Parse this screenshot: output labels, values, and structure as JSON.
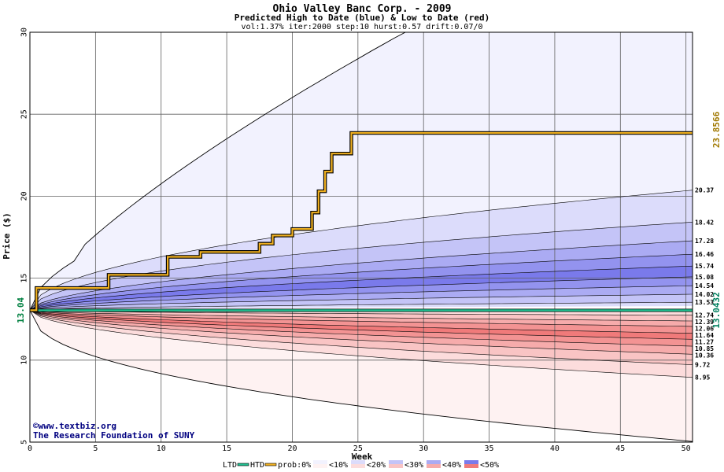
{
  "chart_data": {
    "type": "area",
    "title": "Ohio Valley Banc Corp. - 2009",
    "subtitle": "Predicted High to Date (blue) &  Low to Date (red)",
    "params": "vol:1.37% iter:2000 step:10 hurst:0.57 drift:0.07/0",
    "xlabel": "Week",
    "ylabel": "Price ($)",
    "xlim": [
      0,
      50.5
    ],
    "ylim": [
      5,
      30
    ],
    "x_ticks": [
      "0",
      "5",
      "10",
      "15",
      "20",
      "25",
      "30",
      "35",
      "40",
      "45",
      "50"
    ],
    "y_ticks": [
      "5",
      "10",
      "15",
      "20",
      "25",
      "30"
    ],
    "start_price": "13.04",
    "ltd_value": "13.0432",
    "htd_value": "23.8566",
    "grid": true,
    "high_bands": [
      {
        "end": 30.0,
        "fill": "#f2f2fe"
      },
      {
        "end": 20.37,
        "fill": "#dcdcfb"
      },
      {
        "end": 18.42,
        "fill": "#c4c4f7"
      },
      {
        "end": 17.28,
        "fill": "#ababf3"
      },
      {
        "end": 16.46,
        "fill": "#9393ef"
      },
      {
        "end": 15.74,
        "fill": "#7a7aeb"
      },
      {
        "end": 15.08,
        "fill": "#9393ef"
      },
      {
        "end": 14.54,
        "fill": "#ababf3"
      },
      {
        "end": 14.02,
        "fill": "#c4c4f7"
      },
      {
        "end": 13.53,
        "fill": "#dcdcfb"
      }
    ],
    "low_bands": [
      {
        "end": 12.74,
        "fill": "#fcdcdc"
      },
      {
        "end": 12.39,
        "fill": "#f9c4c4"
      },
      {
        "end": 12.06,
        "fill": "#f6abab"
      },
      {
        "end": 11.64,
        "fill": "#f39393"
      },
      {
        "end": 11.27,
        "fill": "#f07a7a"
      },
      {
        "end": 10.85,
        "fill": "#f39393"
      },
      {
        "end": 10.36,
        "fill": "#f6abab"
      },
      {
        "end": 9.72,
        "fill": "#f9c4c4"
      },
      {
        "end": 8.95,
        "fill": "#fcdcdc"
      },
      {
        "end": 5.0,
        "fill": "#fef2f2"
      }
    ],
    "end_labels": [
      "20.37",
      "18.42",
      "17.28",
      "16.46",
      "15.74",
      "15.08",
      "14.54",
      "14.02",
      "13.53",
      "12.74",
      "12.39",
      "12.06",
      "11.64",
      "11.27",
      "10.85",
      "10.36",
      "9.72",
      "8.95"
    ],
    "htd_series": {
      "name": "HTD",
      "x": [
        0,
        0.5,
        0.5,
        6,
        6,
        10.5,
        10.5,
        13,
        13,
        17.5,
        17.5,
        18.5,
        18.5,
        20,
        20,
        21.5,
        21.5,
        22,
        22,
        22.5,
        22.5,
        23,
        23,
        24,
        24,
        24.5,
        24.5,
        50.5
      ],
      "y": [
        13.04,
        13.04,
        14.4,
        14.4,
        15.2,
        15.2,
        16.3,
        16.3,
        16.6,
        16.6,
        17.1,
        17.1,
        17.6,
        17.6,
        18.0,
        18.0,
        19.0,
        19.0,
        20.3,
        20.3,
        21.5,
        21.5,
        22.6,
        22.6,
        22.6,
        22.6,
        23.86,
        23.86
      ],
      "color": "#f0b020"
    },
    "ltd_series": {
      "name": "LTD",
      "x": [
        0,
        50.5
      ],
      "y": [
        13.04,
        13.04
      ],
      "color": "#20c090"
    },
    "legend": {
      "ltd_label": "LTD",
      "htd_label": "HTD",
      "prob_label": "prob:0%",
      "items": [
        "<10%",
        "<20%",
        "<30%",
        "<40%",
        "<50%"
      ],
      "colors_top": [
        "#f2f2fe",
        "#dcdcfb",
        "#c4c4f7",
        "#ababf3",
        "#7a7aeb"
      ],
      "colors_bottom": [
        "#fef2f2",
        "#fcdcdc",
        "#f9c4c4",
        "#f6abab",
        "#f07a7a"
      ]
    }
  },
  "credit": {
    "copyright_symbol": "©",
    "site": "www.textbiz.org",
    "org": "The Research Foundation of SUNY"
  }
}
